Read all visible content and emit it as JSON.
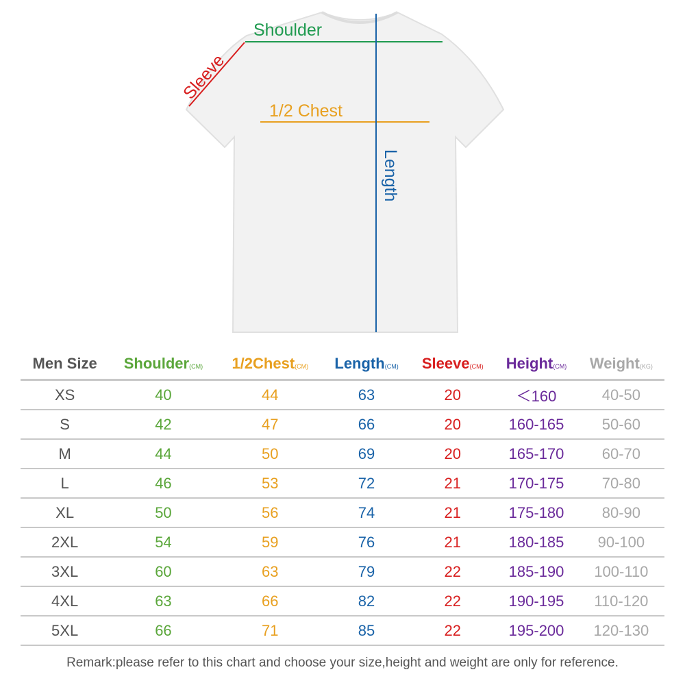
{
  "diagram": {
    "shoulder_label": "Shoulder",
    "sleeve_label": "Sleeve",
    "chest_label": "1/2 Chest",
    "length_label": "Length"
  },
  "colors": {
    "size": "#555555",
    "shoulder": "#5aa63a",
    "chest": "#e8a020",
    "length": "#1a63a8",
    "sleeve": "#d81e1e",
    "height": "#6a2a9a",
    "weight": "#a8a8a8",
    "shoulder_line": "#1f9a4f"
  },
  "table": {
    "headers": [
      {
        "label": "Men Size",
        "unit": ""
      },
      {
        "label": "Shoulder",
        "unit": "(CM)"
      },
      {
        "label": "1/2Chest",
        "unit": "(CM)"
      },
      {
        "label": "Length",
        "unit": "(CM)"
      },
      {
        "label": "Sleeve",
        "unit": "(CM)"
      },
      {
        "label": "Height",
        "unit": "(CM)"
      },
      {
        "label": "Weight",
        "unit": "(KG)"
      }
    ],
    "rows": [
      [
        "XS",
        "40",
        "44",
        "63",
        "20",
        "＜160",
        "40-50"
      ],
      [
        "S",
        "42",
        "47",
        "66",
        "20",
        "160-165",
        "50-60"
      ],
      [
        "M",
        "44",
        "50",
        "69",
        "20",
        "165-170",
        "60-70"
      ],
      [
        "L",
        "46",
        "53",
        "72",
        "21",
        "170-175",
        "70-80"
      ],
      [
        "XL",
        "50",
        "56",
        "74",
        "21",
        "175-180",
        "80-90"
      ],
      [
        "2XL",
        "54",
        "59",
        "76",
        "21",
        "180-185",
        "90-100"
      ],
      [
        "3XL",
        "60",
        "63",
        "79",
        "22",
        "185-190",
        "100-110"
      ],
      [
        "4XL",
        "63",
        "66",
        "82",
        "22",
        "190-195",
        "110-120"
      ],
      [
        "5XL",
        "66",
        "71",
        "85",
        "22",
        "195-200",
        "120-130"
      ]
    ]
  },
  "remark": "Remark:please refer to this chart and choose your size,height and weight are only for reference."
}
